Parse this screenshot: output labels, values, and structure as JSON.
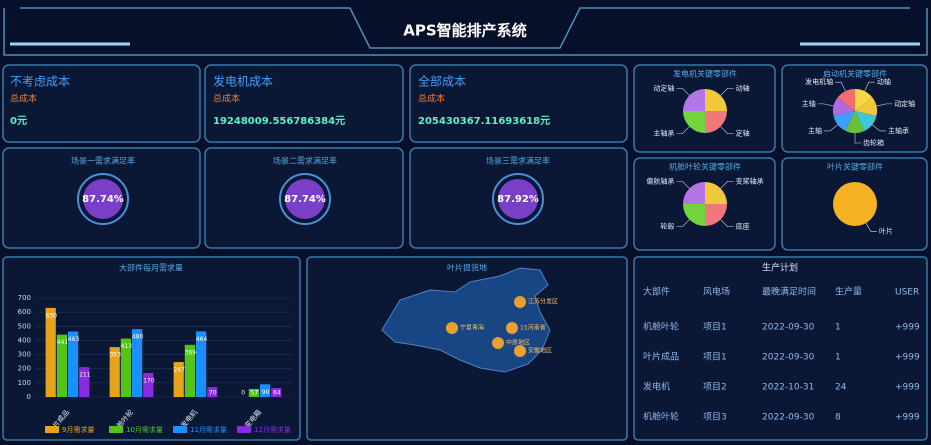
{
  "header": {
    "title": "APS智能排产系统"
  },
  "cost_cards": [
    {
      "title": "不考虑成本",
      "subtitle": "总成本",
      "value": "0元"
    },
    {
      "title": "发电机成本",
      "subtitle": "总成本",
      "value": "19248009.556786384元"
    },
    {
      "title": "全部成本",
      "subtitle": "总成本",
      "value": "205430367.11693618元"
    }
  ],
  "gauges": [
    {
      "title": "场景一需求满足率",
      "value": "87.74%"
    },
    {
      "title": "场景二需求满足率",
      "value": "87.74%"
    },
    {
      "title": "场景三需求满足率",
      "value": "87.92%"
    }
  ],
  "pies": [
    {
      "type": "pie",
      "title": "发电机关键零部件",
      "slices": [
        {
          "label": "动轴",
          "value": 25,
          "color": "#f0c93a"
        },
        {
          "label": "定轴",
          "value": 25,
          "color": "#f0787a"
        },
        {
          "label": "主轴承",
          "value": 25,
          "color": "#72d43f"
        },
        {
          "label": "动定轴",
          "value": 25,
          "color": "#b574e8"
        }
      ]
    },
    {
      "type": "pie",
      "title": "启动机关键零部件",
      "slices": [
        {
          "label": "动轴",
          "value": 14,
          "color": "#f5d742"
        },
        {
          "label": "动定轴",
          "value": 14,
          "color": "#f0c93a"
        },
        {
          "label": "主轴承",
          "value": 14,
          "color": "#3ec9d6"
        },
        {
          "label": "齿轮箱",
          "value": 14,
          "color": "#67c23a"
        },
        {
          "label": "主轴",
          "value": 14,
          "color": "#409eff"
        },
        {
          "label": "主轴",
          "value": 14,
          "color": "#b06ae0"
        },
        {
          "label": "发电机轴",
          "value": 14,
          "color": "#f56c6c"
        }
      ]
    },
    {
      "type": "pie",
      "title": "机舱叶轮关键零部件",
      "slices": [
        {
          "label": "变桨轴承",
          "value": 25,
          "color": "#f0c93a"
        },
        {
          "label": "底座",
          "value": 25,
          "color": "#f0787a"
        },
        {
          "label": "轮毂",
          "value": 25,
          "color": "#72d43f"
        },
        {
          "label": "偏航轴承",
          "value": 25,
          "color": "#b574e8"
        }
      ]
    },
    {
      "type": "pie",
      "title": "叶片关键零部件",
      "slices": [
        {
          "label": "叶片",
          "value": 100,
          "color": "#f5b324"
        }
      ]
    }
  ],
  "bar_chart": {
    "type": "bar",
    "title": "大部件每月需求量",
    "categories": [
      "叶片成品",
      "机舱叶轮",
      "发电机",
      "变电箱"
    ],
    "series": [
      {
        "name": "9月需求量",
        "color": "#e8a317",
        "values": [
          630,
          353,
          247,
          0
        ]
      },
      {
        "name": "10月需求量",
        "color": "#52c41a",
        "values": [
          441,
          413,
          369,
          57
        ]
      },
      {
        "name": "11月需求量",
        "color": "#1890ff",
        "values": [
          463,
          480,
          464,
          90
        ]
      },
      {
        "name": "12月需求量",
        "color": "#8a2be2",
        "values": [
          211,
          170,
          70,
          64
        ]
      }
    ],
    "ylim": [
      0,
      700
    ],
    "yticks": [
      0,
      100,
      200,
      300,
      400,
      500,
      600,
      700
    ]
  },
  "map": {
    "title": "叶片提货地",
    "places": [
      "江苏分发区",
      "宁夏青海",
      "15河南省",
      "中原地区",
      "安徽地区"
    ]
  },
  "table": {
    "title": "生产计划",
    "headers": [
      "大部件",
      "风电场",
      "最晚满足时间",
      "生产量",
      "USER"
    ],
    "rows": [
      [
        "机舱叶轮",
        "项目1",
        "2022-09-30",
        "1",
        "+999"
      ],
      [
        "叶片成品",
        "项目1",
        "2022-09-30",
        "1",
        "+999"
      ],
      [
        "发电机",
        "项目2",
        "2022-10-31",
        "24",
        "+999"
      ],
      [
        "机舱叶轮",
        "项目3",
        "2022-09-30",
        "8",
        "+999"
      ]
    ]
  }
}
